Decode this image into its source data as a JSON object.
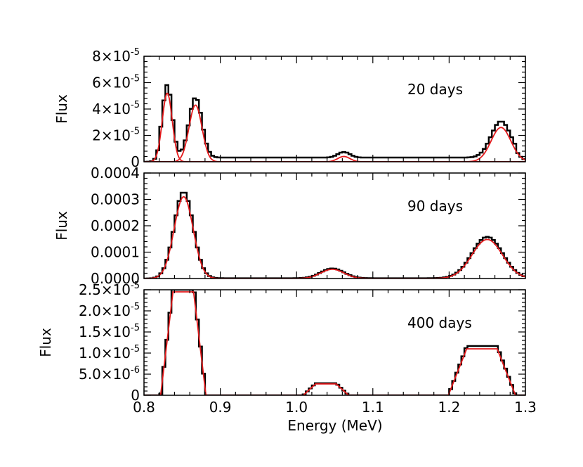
{
  "chart_data": {
    "type": "line",
    "xlabel": "Energy (MeV)",
    "xlim": [
      0.8,
      1.3
    ],
    "xticks": [
      0.8,
      0.9,
      1.0,
      1.1,
      1.2,
      1.3
    ],
    "xtick_labels": [
      "0.8",
      "0.9",
      "1.0",
      "1.1",
      "1.2",
      "1.3"
    ],
    "colors": {
      "spectrum": "#000000",
      "fit": "#e41a1c"
    },
    "panels": [
      {
        "annotation": "20 days",
        "ylabel": "Flux",
        "ylim": [
          0,
          8e-05
        ],
        "yticks": [
          {
            "value": 0,
            "mantissa": "0",
            "exp": ""
          },
          {
            "value": 2e-05,
            "mantissa": "2×10",
            "exp": "-5"
          },
          {
            "value": 4e-05,
            "mantissa": "4×10",
            "exp": "-5"
          },
          {
            "value": 6e-05,
            "mantissa": "6×10",
            "exp": "-5"
          },
          {
            "value": 8e-05,
            "mantissa": "8×10",
            "exp": "-5"
          }
        ],
        "baseline": 3e-06,
        "lines": [
          {
            "center": 0.8305,
            "sigma": 0.0065,
            "amp": 5.2e-05
          },
          {
            "center": 0.8675,
            "sigma": 0.0085,
            "amp": 4.3e-05
          },
          {
            "center": 1.062,
            "sigma": 0.008,
            "amp": 4e-06
          },
          {
            "center": 1.268,
            "sigma": 0.013,
            "amp": 2.6e-05
          }
        ],
        "fit_mode": "separate"
      },
      {
        "annotation": "90 days",
        "ylabel": "Flux",
        "ylim": [
          0,
          0.0004
        ],
        "yticks": [
          {
            "value": 0,
            "mantissa": "0.0000",
            "exp": ""
          },
          {
            "value": 0.0001,
            "mantissa": "0.0001",
            "exp": ""
          },
          {
            "value": 0.0002,
            "mantissa": "0.0002",
            "exp": ""
          },
          {
            "value": 0.0003,
            "mantissa": "0.0003",
            "exp": ""
          },
          {
            "value": 0.0004,
            "mantissa": "0.0004",
            "exp": ""
          }
        ],
        "baseline": 1e-06,
        "lines": [
          {
            "center": 0.852,
            "sigma": 0.0125,
            "amp": 0.00031
          },
          {
            "center": 1.047,
            "sigma": 0.015,
            "amp": 3.5e-05
          },
          {
            "center": 1.25,
            "sigma": 0.02,
            "amp": 0.000148
          }
        ],
        "fit_mode": "combined"
      },
      {
        "annotation": "400 days",
        "ylabel": "Flux",
        "ylim": [
          0,
          2.5e-05
        ],
        "yticks": [
          {
            "value": 0,
            "mantissa": "0",
            "exp": ""
          },
          {
            "value": 5e-06,
            "mantissa": "5.0×10",
            "exp": "-6"
          },
          {
            "value": 1e-05,
            "mantissa": "1.0×10",
            "exp": "-5"
          },
          {
            "value": 1.5e-05,
            "mantissa": "1.5×10",
            "exp": "-5"
          },
          {
            "value": 2e-05,
            "mantissa": "2.0×10",
            "exp": "-5"
          },
          {
            "value": 2.5e-05,
            "mantissa": "2.5×10",
            "exp": "-5"
          }
        ],
        "baseline": 0,
        "lines": [
          {
            "center": 0.8515,
            "sigma": 0.0135,
            "amp": 2.45e-05,
            "shape": "flat"
          },
          {
            "center": 1.0385,
            "sigma": 0.0135,
            "amp": 2.7e-06,
            "shape": "flat"
          },
          {
            "center": 1.243,
            "sigma": 0.02,
            "amp": 1.1e-05,
            "shape": "flat"
          }
        ],
        "fit_mode": "combined"
      }
    ]
  }
}
